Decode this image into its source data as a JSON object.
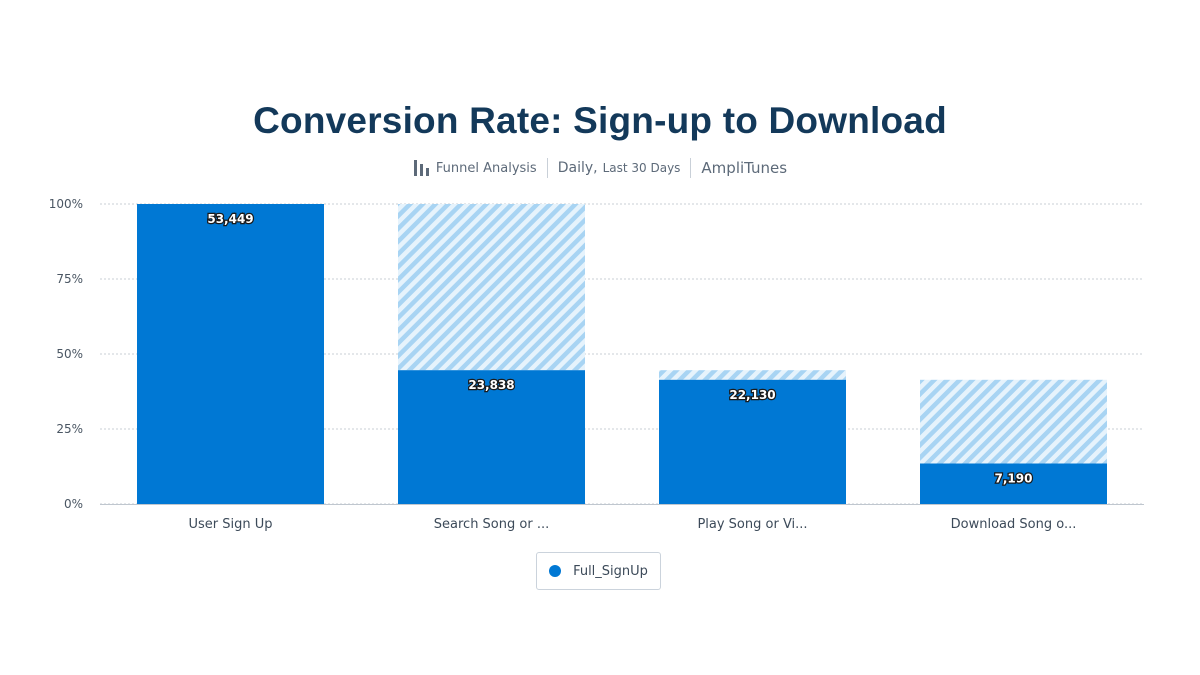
{
  "title": "Conversion Rate: Sign-up to Download",
  "subtitle": {
    "analysis_type": "Funnel Analysis",
    "interval": "Daily,",
    "range": "Last 30 Days",
    "project": "AmpliTunes"
  },
  "colors": {
    "bar": "#0078d4",
    "dropoff": "#a8d4f3",
    "dropoff_bg": "#e6f3fc",
    "title": "#13395a",
    "grid": "#c9cfd6"
  },
  "legend": {
    "label": "Full_SignUp"
  },
  "chart_data": {
    "type": "bar",
    "title": "Conversion Rate: Sign-up to Download",
    "xlabel": "",
    "ylabel": "",
    "ylim": [
      0,
      100
    ],
    "yticks": [
      0,
      25,
      50,
      75,
      100
    ],
    "ytick_labels": [
      "0%",
      "25%",
      "50%",
      "75%",
      "100%"
    ],
    "categories": [
      "User Sign Up",
      "Search Song or ...",
      "Play Song or Vi...",
      "Download Song o..."
    ],
    "series": [
      {
        "name": "Full_SignUp",
        "values": [
          100,
          44.6,
          41.4,
          13.5
        ],
        "counts": [
          53449,
          23838,
          22130,
          7190
        ],
        "labels": [
          "53,449",
          "23,838",
          "22,130",
          "7,190"
        ]
      }
    ],
    "dropoff_from": [
      100,
      100,
      44.6,
      41.4
    ]
  }
}
